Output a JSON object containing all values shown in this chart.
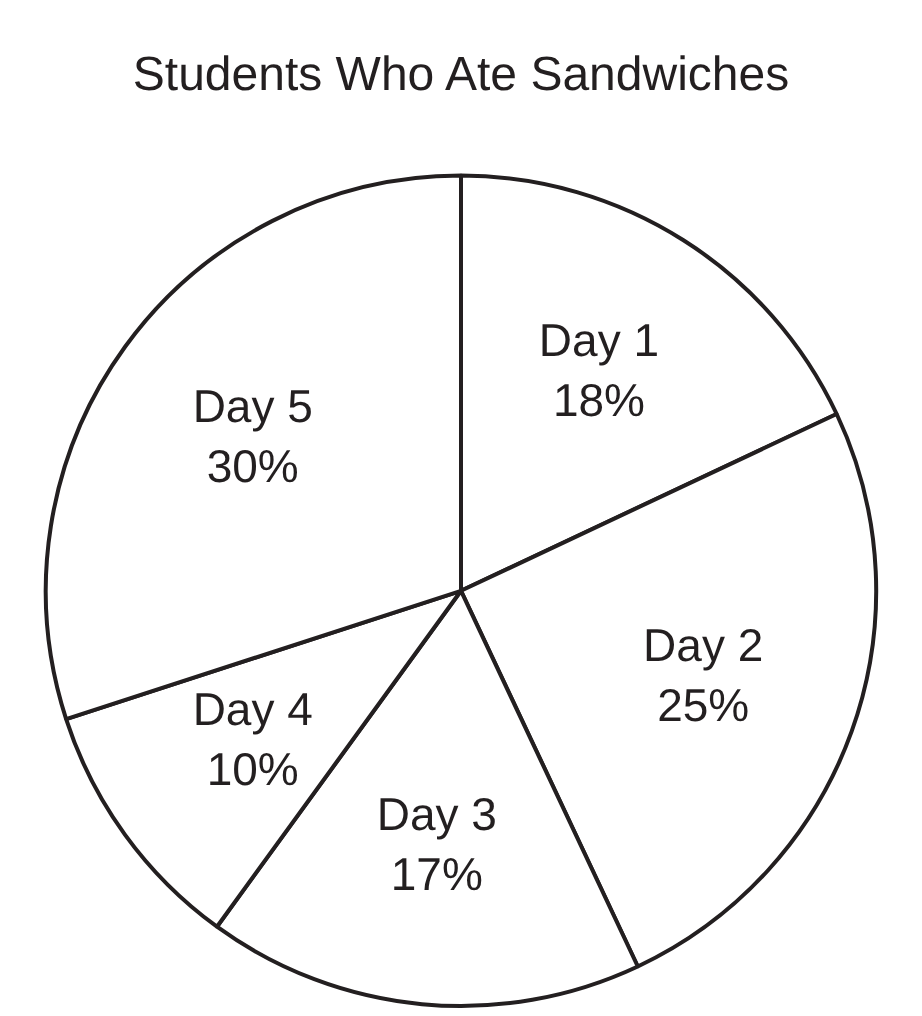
{
  "chart_data": {
    "type": "pie",
    "title": "Students Who Ate Sandwiches",
    "categories": [
      "Day 1",
      "Day 2",
      "Day 3",
      "Day 4",
      "Day 5"
    ],
    "values": [
      18,
      25,
      17,
      10,
      30
    ],
    "colors": [
      "#ffffff",
      "#ffffff",
      "#ffffff",
      "#ffffff",
      "#ffffff"
    ],
    "value_labels": [
      "18%",
      "25%",
      "17%",
      "10%",
      "30%"
    ],
    "legend": false
  }
}
